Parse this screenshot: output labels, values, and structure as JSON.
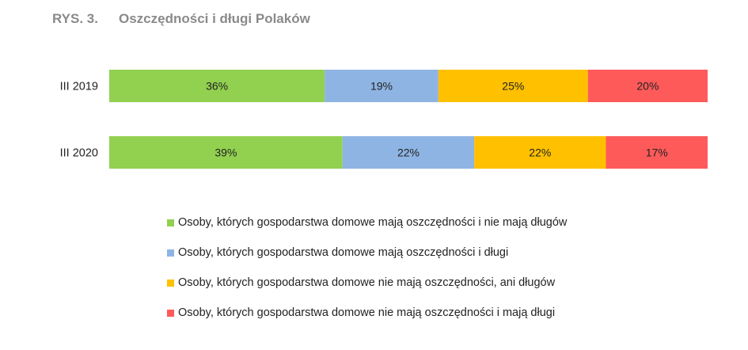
{
  "figure": {
    "number": "RYS. 3.",
    "title": "Oszczędności i długi Polaków"
  },
  "chart_data": {
    "type": "bar",
    "orientation": "horizontal",
    "stacked": true,
    "value_unit": "%",
    "grid": false,
    "legend_position": "bottom",
    "xlim": [
      0,
      100
    ],
    "categories": [
      "III 2019",
      "III 2020"
    ],
    "series": [
      {
        "name": "Osoby, których gospodarstwa domowe mają oszczędności i nie mają długów",
        "color": "#92d050",
        "values": [
          36,
          39
        ]
      },
      {
        "name": "Osoby, których gospodarstwa domowe mają oszczędności i długi",
        "color": "#8eb4e3",
        "values": [
          19,
          22
        ]
      },
      {
        "name": "Osoby, których gospodarstwa domowe nie mają oszczędności, ani długów",
        "color": "#ffc000",
        "values": [
          25,
          22
        ]
      },
      {
        "name": "Osoby, których gospodarstwa domowe nie mają oszczędności i mają długi",
        "color": "#ff5a5a",
        "values": [
          20,
          17
        ]
      }
    ]
  }
}
